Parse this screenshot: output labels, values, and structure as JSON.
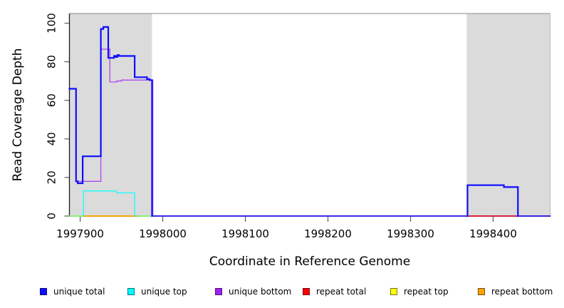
{
  "figure": {
    "xlabel": "Coordinate in Reference Genome",
    "ylabel": "Read Coverage Depth"
  },
  "legend": {
    "items": [
      {
        "label": "unique total",
        "color": "#0d0dff"
      },
      {
        "label": "unique top",
        "color": "#00ffff"
      },
      {
        "label": "unique bottom",
        "color": "#a020f0"
      },
      {
        "label": "repeat total",
        "color": "#ff0000"
      },
      {
        "label": "repeat top",
        "color": "#ffff00"
      },
      {
        "label": "repeat bottom",
        "color": "#ffa500"
      }
    ]
  },
  "chart_data": {
    "type": "line",
    "subtype": "step-coverage",
    "title": "",
    "xlabel": "Coordinate in Reference Genome",
    "ylabel": "Read Coverage Depth",
    "xlim": [
      1997887,
      1998469
    ],
    "ylim": [
      0,
      105
    ],
    "x_ticks": [
      1997900,
      1998000,
      1998100,
      1998200,
      1998300,
      1998400
    ],
    "y_ticks": [
      0,
      20,
      40,
      60,
      80,
      100
    ],
    "grid": false,
    "legend_position": "bottom",
    "shaded_regions": [
      {
        "x0": 1997887,
        "x1": 1997987,
        "color": "#dbdbdb"
      },
      {
        "x0": 1998368,
        "x1": 1998469,
        "color": "#dbdbdb"
      }
    ],
    "series": [
      {
        "name": "repeat top",
        "color": "#ffff00",
        "points": [
          [
            1997887,
            0
          ],
          [
            1997988,
            0
          ]
        ]
      },
      {
        "name": "repeat bottom",
        "color": "#ffa500",
        "points": [
          [
            1997904,
            0
          ],
          [
            1997969,
            0
          ]
        ]
      },
      {
        "name": "unique bottom",
        "color": "#a020f0",
        "points": [
          [
            1997895,
            18
          ],
          [
            1997925,
            18
          ],
          [
            1997925,
            86.5
          ],
          [
            1997936,
            86.5
          ],
          [
            1997936,
            69.5
          ],
          [
            1997944,
            69.5
          ],
          [
            1997944,
            70
          ],
          [
            1997950,
            70
          ],
          [
            1997950,
            70.5
          ],
          [
            1997988,
            70.5
          ],
          [
            1997988,
            0
          ],
          [
            1998469,
            0
          ]
        ]
      },
      {
        "name": "repeat total",
        "color": "#ff0000",
        "points": [
          [
            1998369,
            0
          ],
          [
            1998430,
            0
          ]
        ]
      },
      {
        "name": "unique top",
        "color": "#00ffff",
        "points": [
          [
            1997887,
            0
          ],
          [
            1997904,
            0
          ],
          [
            1997904,
            13
          ],
          [
            1997944,
            13
          ],
          [
            1997944,
            12
          ],
          [
            1997966,
            12
          ],
          [
            1997966,
            0
          ],
          [
            1997988,
            0
          ]
        ]
      },
      {
        "name": "unique total",
        "color": "#0d0dff",
        "points": [
          [
            1997887,
            66
          ],
          [
            1997895,
            66
          ],
          [
            1997895,
            18
          ],
          [
            1997897,
            18
          ],
          [
            1997897,
            17
          ],
          [
            1997903,
            17
          ],
          [
            1997903,
            31
          ],
          [
            1997925,
            31
          ],
          [
            1997925,
            97
          ],
          [
            1997928,
            97
          ],
          [
            1997928,
            98
          ],
          [
            1997934,
            98
          ],
          [
            1997934,
            82
          ],
          [
            1997941,
            82
          ],
          [
            1997941,
            83
          ],
          [
            1997943,
            83
          ],
          [
            1997943,
            82.5
          ],
          [
            1997945,
            82.5
          ],
          [
            1997945,
            83.5
          ],
          [
            1997947,
            83.5
          ],
          [
            1997947,
            83
          ],
          [
            1997966,
            83
          ],
          [
            1997966,
            72
          ],
          [
            1997981,
            72
          ],
          [
            1997981,
            71
          ],
          [
            1997984,
            71
          ],
          [
            1997984,
            70.5
          ],
          [
            1997987,
            70.5
          ],
          [
            1997987,
            0
          ],
          [
            1998369,
            0
          ],
          [
            1998369,
            16
          ],
          [
            1998413,
            16
          ],
          [
            1998413,
            15
          ],
          [
            1998430,
            15
          ],
          [
            1998430,
            0
          ],
          [
            1998469,
            0
          ]
        ]
      }
    ]
  }
}
